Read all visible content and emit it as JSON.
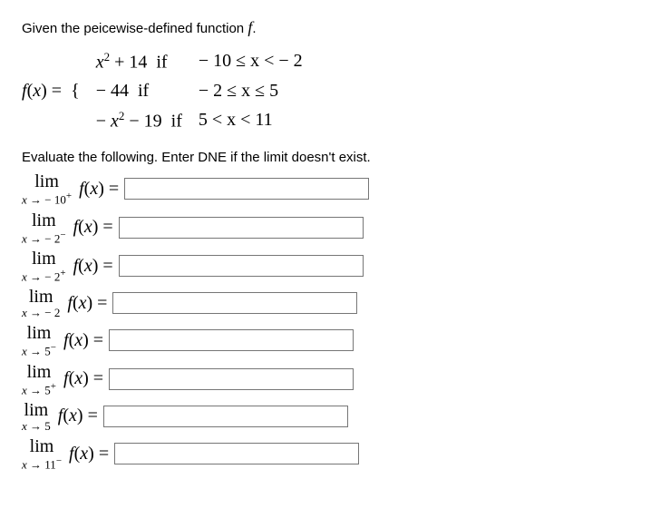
{
  "intro_prefix": "Given the peicewise-defined function ",
  "intro_fn": "f",
  "intro_suffix": ".",
  "fx_label": "f(x) = ",
  "pieces": [
    {
      "expr": "x² + 14",
      "if": "if",
      "cond": "− 10 ≤ x <  − 2"
    },
    {
      "expr": "− 44",
      "if": "if",
      "cond": "− 2 ≤ x ≤ 5"
    },
    {
      "expr": "− x² − 19",
      "if": "if",
      "cond": "5 < x < 11"
    }
  ],
  "instruction": "Evaluate the following. Enter DNE if the limit doesn't exist.",
  "limits": [
    {
      "lim": "lim",
      "approach": "x → − 10⁺",
      "expr": "f(x) ="
    },
    {
      "lim": "lim",
      "approach": "x → − 2⁻",
      "expr": "f(x) ="
    },
    {
      "lim": "lim",
      "approach": "x → − 2⁺",
      "expr": "f(x) ="
    },
    {
      "lim": "lim",
      "approach": "x → − 2",
      "expr": "f(x) ="
    },
    {
      "lim": "lim",
      "approach": "x → 5⁻",
      "expr": "f(x) ="
    },
    {
      "lim": "lim",
      "approach": "x → 5⁺",
      "expr": "f(x) ="
    },
    {
      "lim": "lim",
      "approach": "x → 5",
      "expr": "f(x) ="
    },
    {
      "lim": "lim",
      "approach": "x → 11⁻",
      "expr": "f(x) ="
    }
  ],
  "styling": {
    "body_font": "Arial",
    "math_font": "Times New Roman",
    "body_fontsize": 15,
    "math_fontsize": 20,
    "approach_fontsize": 13,
    "input_width": 260,
    "input_height": 22,
    "input_border": "#767676",
    "text_color": "#000000",
    "background": "#ffffff"
  }
}
